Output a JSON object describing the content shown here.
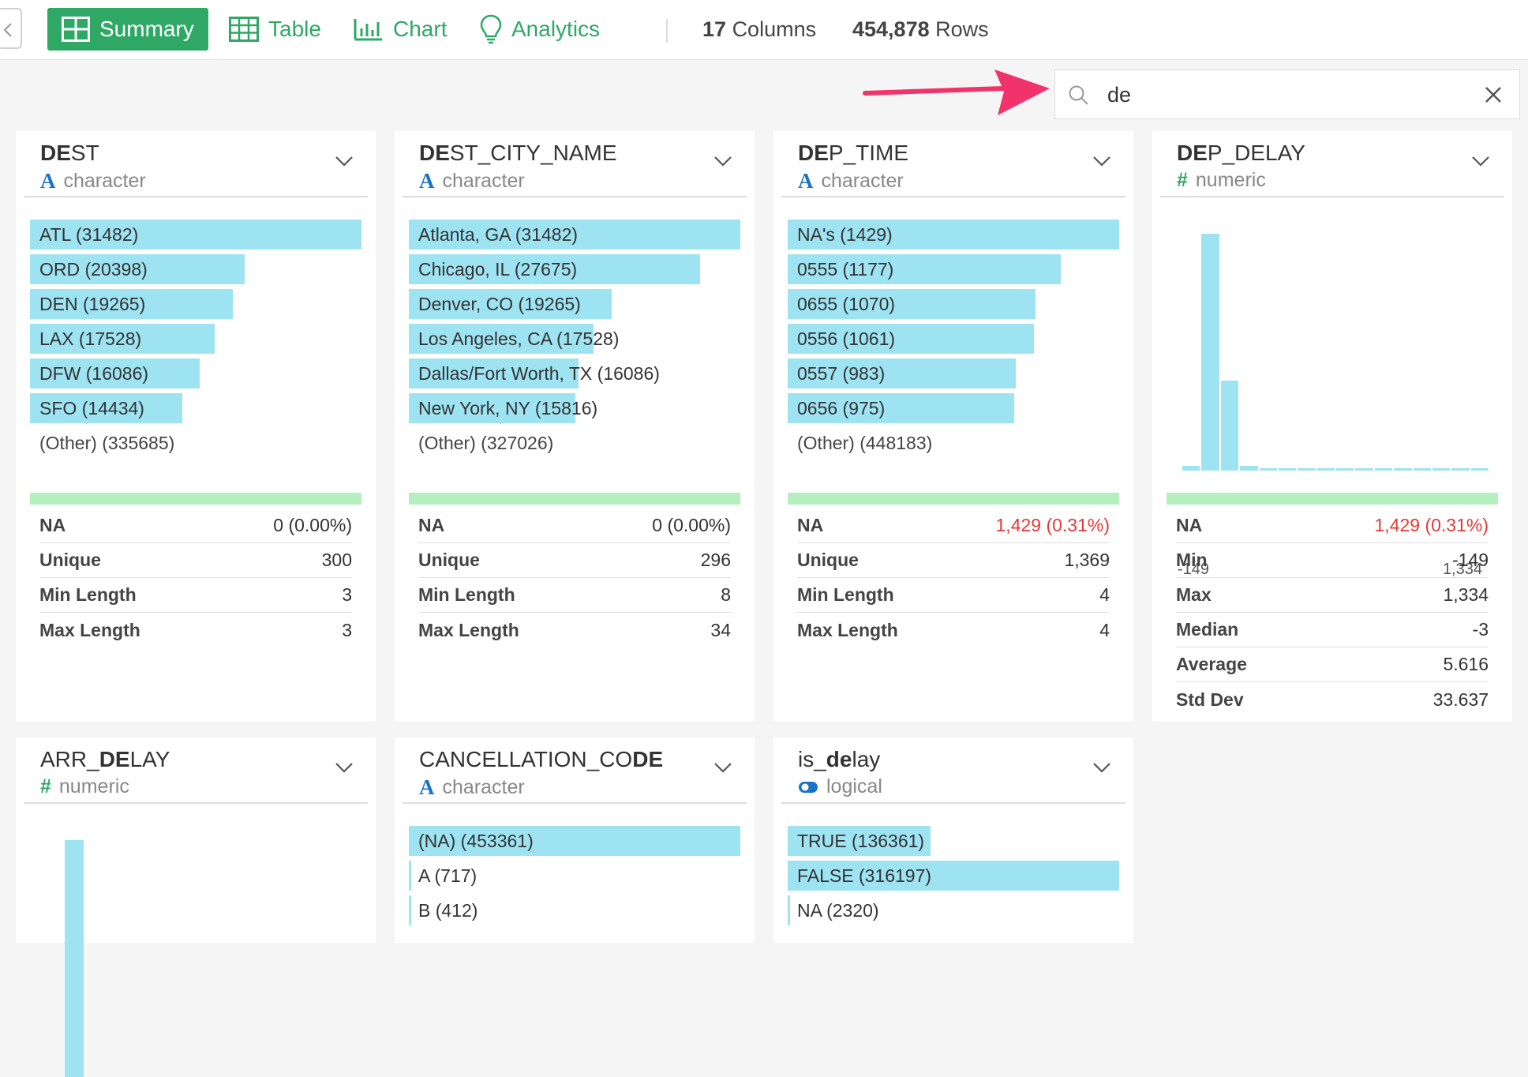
{
  "toolbar": {
    "tabs": [
      {
        "label": "Summary",
        "active": true
      },
      {
        "label": "Table",
        "active": false
      },
      {
        "label": "Chart",
        "active": false
      },
      {
        "label": "Analytics",
        "active": false
      }
    ],
    "columns_count": "17",
    "columns_label": "Columns",
    "rows_count": "454,878",
    "rows_label": "Rows"
  },
  "search": {
    "value": "de",
    "icon": "search-icon",
    "clear_icon": "close-icon"
  },
  "colors": {
    "accent": "#2fa866",
    "bar": "#9ee3f2",
    "valid": "#b6efbf",
    "warn": "#e53935"
  },
  "cards": [
    {
      "name_pre": "",
      "name_hl": "DE",
      "name_post": "ST",
      "type": "character",
      "bars": [
        {
          "label": "ATL (31482)",
          "value": 31482
        },
        {
          "label": "ORD (20398)",
          "value": 20398
        },
        {
          "label": "DEN (19265)",
          "value": 19265
        },
        {
          "label": "LAX (17528)",
          "value": 17528
        },
        {
          "label": "DFW (16086)",
          "value": 16086
        },
        {
          "label": "SFO (14434)",
          "value": 14434
        }
      ],
      "other": "(Other) (335685)",
      "stats": [
        {
          "label": "NA",
          "value": "0 (0.00%)"
        },
        {
          "label": "Unique",
          "value": "300"
        },
        {
          "label": "Min Length",
          "value": "3"
        },
        {
          "label": "Max Length",
          "value": "3"
        }
      ]
    },
    {
      "name_pre": "",
      "name_hl": "DE",
      "name_post": "ST_CITY_NAME",
      "type": "character",
      "bars": [
        {
          "label": "Atlanta, GA (31482)",
          "value": 31482
        },
        {
          "label": "Chicago, IL (27675)",
          "value": 27675
        },
        {
          "label": "Denver, CO (19265)",
          "value": 19265
        },
        {
          "label": "Los Angeles, CA (17528)",
          "value": 17528
        },
        {
          "label": "Dallas/Fort Worth, TX (16086)",
          "value": 16086
        },
        {
          "label": "New York, NY (15816)",
          "value": 15816
        }
      ],
      "other": "(Other) (327026)",
      "stats": [
        {
          "label": "NA",
          "value": "0 (0.00%)"
        },
        {
          "label": "Unique",
          "value": "296"
        },
        {
          "label": "Min Length",
          "value": "8"
        },
        {
          "label": "Max Length",
          "value": "34"
        }
      ]
    },
    {
      "name_pre": "",
      "name_hl": "DE",
      "name_post": "P_TIME",
      "type": "character",
      "bars": [
        {
          "label": "NA's (1429)",
          "value": 1429
        },
        {
          "label": "0555 (1177)",
          "value": 1177
        },
        {
          "label": "0655 (1070)",
          "value": 1070
        },
        {
          "label": "0556 (1061)",
          "value": 1061
        },
        {
          "label": "0557 (983)",
          "value": 983
        },
        {
          "label": "0656 (975)",
          "value": 975
        }
      ],
      "other": "(Other) (448183)",
      "stats": [
        {
          "label": "NA",
          "value": "1,429 (0.31%)",
          "warn": true
        },
        {
          "label": "Unique",
          "value": "1,369"
        },
        {
          "label": "Min Length",
          "value": "4"
        },
        {
          "label": "Max Length",
          "value": "4"
        }
      ]
    },
    {
      "name_pre": "",
      "name_hl": "DE",
      "name_post": "P_DELAY",
      "type": "numeric",
      "histogram": {
        "values": [
          0.02,
          1.0,
          0.38,
          0.02,
          0.01,
          0.01,
          0.01,
          0.01,
          0.01,
          0.01,
          0.01,
          0.01,
          0.01,
          0.01,
          0.01,
          0.01
        ],
        "min_label": "-149",
        "max_label": "1,334"
      },
      "stats": [
        {
          "label": "NA",
          "value": "1,429 (0.31%)",
          "warn": true
        },
        {
          "label": "Min",
          "value": "-149"
        },
        {
          "label": "Max",
          "value": "1,334"
        },
        {
          "label": "Median",
          "value": "-3"
        },
        {
          "label": "Average",
          "value": "5.616"
        },
        {
          "label": "Std Dev",
          "value": "33.637"
        }
      ]
    },
    {
      "name_pre": "ARR_",
      "name_hl": "DE",
      "name_post": "LAY",
      "type": "numeric",
      "histogram": {
        "values": [
          0.0,
          1.0
        ]
      }
    },
    {
      "name_pre": "CANCELLATION_CO",
      "name_hl": "DE",
      "name_post": "",
      "type": "character",
      "bars": [
        {
          "label": "(NA) (453361)",
          "value": 453361
        },
        {
          "label": "A (717)",
          "value": 717
        },
        {
          "label": "B (412)",
          "value": 412
        }
      ]
    },
    {
      "name_pre": "is_",
      "name_hl": "de",
      "name_post": "lay",
      "type": "logical",
      "bars": [
        {
          "label": "TRUE (136361)",
          "value": 136361
        },
        {
          "label": "FALSE (316197)",
          "value": 316197
        },
        {
          "label": "NA (2320)",
          "value": 2320
        }
      ]
    }
  ]
}
